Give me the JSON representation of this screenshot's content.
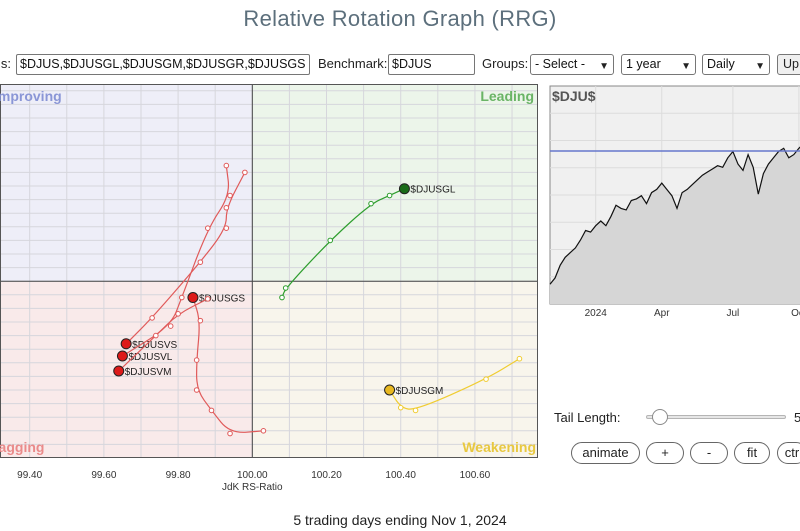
{
  "title": "Relative Rotation Graph (RRG)",
  "controls": {
    "symbols_label": "ls:",
    "symbols_value": "$DJUS,$DJUSGL,$DJUSGM,$DJUSGR,$DJUSGS",
    "benchmark_label": "Benchmark:",
    "benchmark_value": "$DJUS",
    "groups_label": "Groups:",
    "groups_value": "- Select -",
    "period_value": "1 year",
    "frequency_value": "Daily",
    "update_label": "Up"
  },
  "chart_data": [
    {
      "type": "scatter",
      "name": "rrg",
      "xlabel": "JdK RS-Ratio",
      "xlim": [
        99.32,
        100.77
      ],
      "ylim": [
        98.7,
        101.45
      ],
      "center": [
        100,
        100
      ],
      "x_ticks": [
        "99.40",
        "99.60",
        "99.80",
        "100.00",
        "100.20",
        "100.40",
        "100.60"
      ],
      "x_tick_values": [
        99.4,
        99.6,
        99.8,
        100.0,
        100.2,
        100.4,
        100.6
      ],
      "grid": true,
      "quadrants": {
        "improving": "Improving",
        "leading": "Leading",
        "weakening": "Weakening",
        "lagging": "Lagging"
      },
      "colors": {
        "improving_bg": "#eeeef8",
        "leading_bg": "#ecf5ea",
        "weakening_bg": "#f8f5ec",
        "lagging_bg": "#f9eaea",
        "improving_text": "#8a96d6",
        "leading_text": "#6ab466",
        "weakening_text": "#e8c840",
        "lagging_text": "#ea8a8a"
      },
      "series": [
        {
          "name": "$DJUSGL",
          "color": "#2e9e2e",
          "head": "#1a6b1a",
          "label_dx": 6,
          "x": [
            100.08,
            100.09,
            100.21,
            100.32,
            100.37,
            100.41
          ],
          "y": [
            99.88,
            99.95,
            100.3,
            100.57,
            100.63,
            100.68
          ]
        },
        {
          "name": "$DJUSGM",
          "color": "#f0cc30",
          "head": "#e8b820",
          "label_dx": 6,
          "x": [
            100.72,
            100.63,
            100.44,
            100.4,
            100.37
          ],
          "y": [
            99.43,
            99.28,
            99.05,
            99.07,
            99.2
          ]
        },
        {
          "name": "$DJUSGS",
          "color": "#e05a5a",
          "head": "#dd1a1a",
          "label_dx": 6,
          "x": [
            100.03,
            99.94,
            99.89,
            99.85,
            99.85,
            99.86,
            99.84
          ],
          "y": [
            98.9,
            98.88,
            99.05,
            99.2,
            99.42,
            99.71,
            99.88
          ]
        },
        {
          "name": "$DJUSVS",
          "color": "#e05a5a",
          "head": "#dd1a1a",
          "label_dx": 6,
          "x": [
            99.98,
            99.93,
            99.93,
            99.86,
            99.73,
            99.66
          ],
          "y": [
            100.8,
            100.54,
            100.39,
            100.14,
            99.73,
            99.54
          ]
        },
        {
          "name": "$DJUSVL",
          "color": "#e05a5a",
          "head": "#dd1a1a",
          "label_dx": 6,
          "x": [
            99.93,
            99.94,
            99.88,
            99.81,
            99.78,
            99.65
          ],
          "y": [
            100.85,
            100.63,
            100.39,
            99.88,
            99.67,
            99.45
          ]
        },
        {
          "name": "$DJUSVM",
          "color": "#e05a5a",
          "head": "#dd1a1a",
          "label_dx": 6,
          "x": [
            99.88,
            99.8,
            99.74,
            99.64
          ],
          "y": [
            99.87,
            99.76,
            99.6,
            99.34
          ]
        }
      ]
    },
    {
      "type": "area",
      "name": "benchmark",
      "title": "$DJU$",
      "x_ticks": [
        "2024",
        "Apr",
        "Jul",
        "Oct"
      ],
      "x_tick_values": [
        0.18,
        0.44,
        0.72,
        0.98
      ],
      "ylim": [
        0,
        100
      ],
      "reference": 88,
      "x": [
        0,
        0.02,
        0.04,
        0.06,
        0.08,
        0.1,
        0.12,
        0.14,
        0.16,
        0.18,
        0.2,
        0.22,
        0.24,
        0.26,
        0.28,
        0.3,
        0.32,
        0.34,
        0.36,
        0.38,
        0.4,
        0.42,
        0.44,
        0.46,
        0.48,
        0.5,
        0.52,
        0.54,
        0.56,
        0.58,
        0.6,
        0.62,
        0.64,
        0.66,
        0.68,
        0.7,
        0.72,
        0.74,
        0.76,
        0.78,
        0.8,
        0.82,
        0.84,
        0.86,
        0.88,
        0.9,
        0.92,
        0.94,
        0.96,
        0.98,
        1.0
      ],
      "values": [
        10,
        14,
        22,
        27,
        30,
        33,
        38,
        44,
        43,
        47,
        50,
        47,
        53,
        60,
        58,
        57,
        63,
        64,
        66,
        61,
        68,
        70,
        74,
        70,
        66,
        58,
        68,
        70,
        73,
        76,
        79,
        81,
        83,
        85,
        84,
        90,
        94,
        86,
        82,
        92,
        84,
        67,
        80,
        86,
        90,
        94,
        96,
        90,
        92,
        96,
        99
      ]
    }
  ],
  "tail": {
    "label": "Tail Length:",
    "value": "5",
    "level": 0.05
  },
  "buttons": {
    "animate": "animate",
    "plus": "+",
    "minus": "-",
    "fit": "fit",
    "ctrl": "ctr"
  },
  "footer": "5 trading days ending Nov 1, 2024"
}
